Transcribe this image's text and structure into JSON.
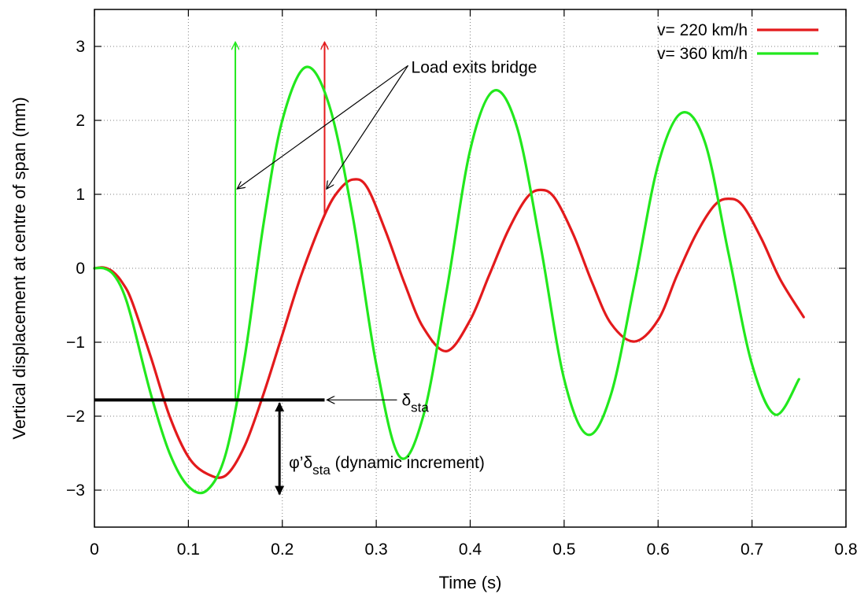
{
  "chart_data": {
    "type": "line",
    "title": "",
    "xlabel": "Time (s)",
    "ylabel": "Vertical displacement at centre of span (mm)",
    "xlim": [
      0,
      0.8
    ],
    "ylim": [
      -3.5,
      3.5
    ],
    "xticks": [
      0,
      0.1,
      0.2,
      0.3,
      0.4,
      0.5,
      0.6,
      0.7,
      0.8
    ],
    "xtick_labels": [
      "0",
      "0.1",
      "0.2",
      "0.3",
      "0.4",
      "0.5",
      "0.6",
      "0.7",
      "0.8"
    ],
    "yticks": [
      -3,
      -2,
      -1,
      0,
      1,
      2,
      3
    ],
    "ytick_labels": [
      "−3",
      "−2",
      "−1",
      "0",
      "1",
      "2",
      "3"
    ],
    "grid": true,
    "legend": "top-right",
    "series": [
      {
        "name": "v= 220 km/h",
        "color": "#e31a1c",
        "x": [
          0,
          0.01,
          0.02,
          0.03,
          0.04,
          0.06,
          0.08,
          0.1,
          0.12,
          0.14,
          0.16,
          0.18,
          0.2,
          0.22,
          0.245,
          0.26,
          0.275,
          0.29,
          0.31,
          0.33,
          0.35,
          0.375,
          0.4,
          0.42,
          0.44,
          0.46,
          0.475,
          0.49,
          0.51,
          0.53,
          0.55,
          0.575,
          0.6,
          0.62,
          0.64,
          0.66,
          0.675,
          0.69,
          0.71,
          0.73,
          0.755
        ],
        "y": [
          0,
          0.01,
          -0.05,
          -0.2,
          -0.45,
          -1.2,
          -2.0,
          -2.55,
          -2.78,
          -2.8,
          -2.4,
          -1.7,
          -0.9,
          -0.1,
          0.72,
          1.05,
          1.2,
          1.1,
          0.5,
          -0.2,
          -0.8,
          -1.12,
          -0.7,
          -0.1,
          0.5,
          0.95,
          1.06,
          0.95,
          0.45,
          -0.2,
          -0.75,
          -0.99,
          -0.7,
          -0.1,
          0.45,
          0.85,
          0.94,
          0.85,
          0.4,
          -0.15,
          -0.66
        ]
      },
      {
        "name": "v= 360 km/h",
        "color": "#22e81d",
        "x": [
          0,
          0.01,
          0.02,
          0.03,
          0.04,
          0.06,
          0.08,
          0.1,
          0.12,
          0.14,
          0.16,
          0.18,
          0.2,
          0.225,
          0.25,
          0.275,
          0.3,
          0.325,
          0.35,
          0.375,
          0.4,
          0.425,
          0.45,
          0.475,
          0.5,
          0.525,
          0.55,
          0.575,
          0.6,
          0.625,
          0.65,
          0.675,
          0.7,
          0.725,
          0.75
        ],
        "y": [
          0,
          0,
          -0.08,
          -0.3,
          -0.7,
          -1.7,
          -2.5,
          -2.95,
          -3.0,
          -2.5,
          -1.2,
          0.6,
          2.0,
          2.72,
          2.2,
          0.7,
          -1.3,
          -2.55,
          -2.0,
          -0.3,
          1.6,
          2.4,
          1.9,
          0.3,
          -1.5,
          -2.25,
          -1.7,
          -0.2,
          1.4,
          2.1,
          1.7,
          0.2,
          -1.3,
          -1.98,
          -1.5
        ]
      }
    ],
    "static_level": {
      "y": -1.78,
      "x_start": 0,
      "x_end": 0.245,
      "label": "δ",
      "label_sub": "sta"
    },
    "dynamic_increment": {
      "x": 0.197,
      "y_top": -1.78,
      "y_bottom": -3.1,
      "label_prefix": "φ’δ",
      "label_sub": "sta",
      "label_suffix": " (dynamic increment)"
    },
    "exit_markers": [
      {
        "x": 0.15,
        "y_from": -1.78,
        "y_to": 3.05,
        "color": "#22e81d"
      },
      {
        "x": 0.245,
        "y_from": 0.7,
        "y_to": 3.05,
        "color": "#e31a1c"
      }
    ],
    "annotation_exit": {
      "label": "Load exits bridge",
      "label_x": 0.235,
      "label_y": 2.72,
      "targets": [
        {
          "x": 0.15,
          "y": 1.08
        },
        {
          "x": 0.245,
          "y": 1.08
        }
      ]
    }
  }
}
